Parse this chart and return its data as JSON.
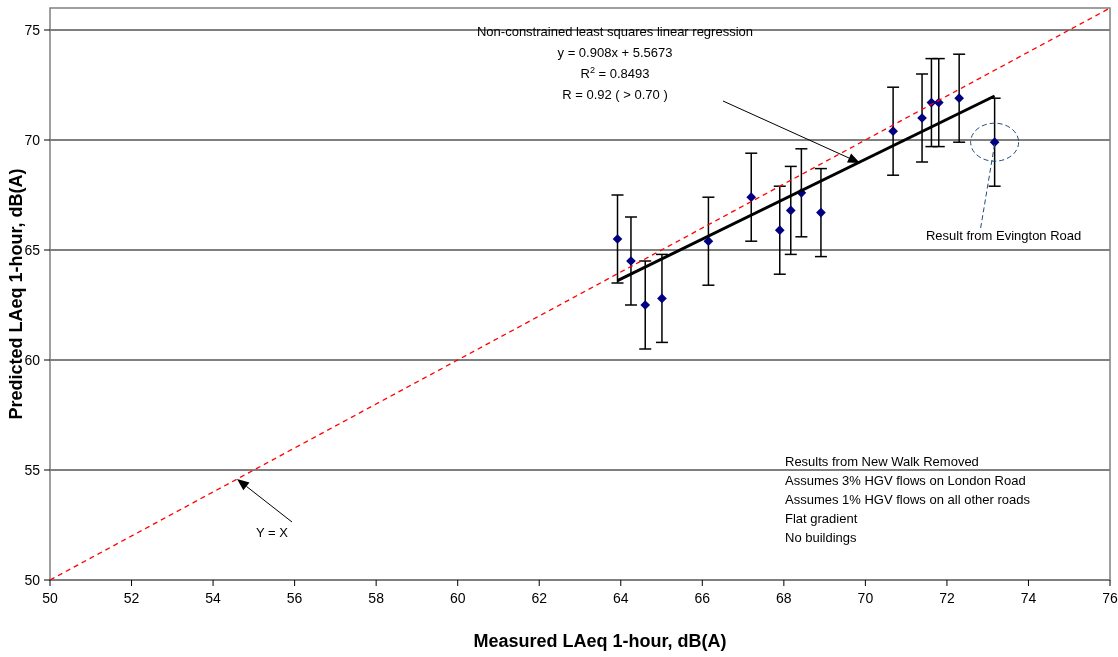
{
  "chart_data": {
    "type": "scatter",
    "xlabel": "Measured LAeq 1-hour, dB(A)",
    "ylabel": "Predicted LAeq 1-hour, dB(A)",
    "xlim": [
      50,
      76
    ],
    "ylim": [
      50,
      76
    ],
    "xticks": [
      50,
      52,
      54,
      56,
      58,
      60,
      62,
      64,
      66,
      68,
      70,
      72,
      74,
      76
    ],
    "yticks": [
      50,
      55,
      60,
      65,
      70,
      75
    ],
    "grid": "y",
    "marker": "diamond",
    "series": [
      {
        "color": "#000080",
        "x": [
          63.92,
          64.25,
          64.6,
          65.01,
          66.15,
          67.2,
          67.9,
          68.17,
          68.43,
          68.91,
          70.68,
          71.39,
          71.62,
          71.8,
          72.3,
          73.17
        ],
        "values": [
          65.5,
          64.5,
          62.5,
          62.8,
          65.4,
          67.4,
          65.9,
          66.8,
          67.6,
          66.7,
          70.4,
          71.0,
          71.7,
          71.7,
          71.9,
          69.9
        ],
        "errors": [
          2,
          2,
          2,
          2,
          2,
          2,
          2,
          2,
          2,
          2,
          2,
          2,
          2,
          2,
          2,
          2
        ]
      },
      {
        "type": "line",
        "color": "#000000",
        "line_style": "solid",
        "marker": "none",
        "x": [
          63.92,
          73.17
        ],
        "values": [
          63.61,
          72.0
        ]
      },
      {
        "type": "line",
        "color": "#ff0000",
        "line_style": "dashed",
        "marker": "none",
        "x": [
          50,
          76
        ],
        "values": [
          50,
          76
        ]
      }
    ],
    "annotations": [
      "Non-constrained least squares linear regression\ny = 0.908x + 5.5673\nR$^{2}$ = 0.8493\nR = 0.92 ( > 0.70 )",
      "Y = X",
      {
        "text": "Result from Evington Road",
        "x": 73.17,
        "y": 69.9
      },
      "Results from New Walk Removed\nAssumes 3% HGV flows on London Road\nAssumes 1% HGV flows on all other roads\nFlat gradient\nNo buildings"
    ]
  }
}
